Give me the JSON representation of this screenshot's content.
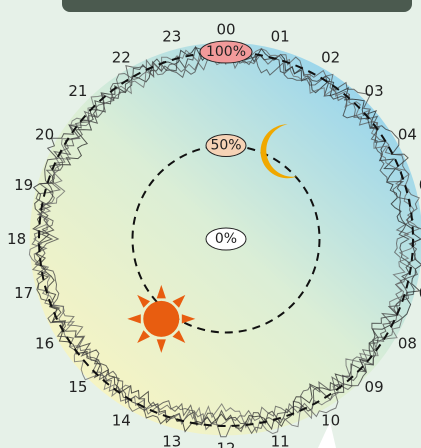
{
  "chart_data": {
    "type": "radial-line",
    "title": "",
    "hours": [
      "00",
      "01",
      "02",
      "03",
      "04",
      "05",
      "06",
      "07",
      "08",
      "09",
      "10",
      "11",
      "12",
      "13",
      "14",
      "15",
      "16",
      "17",
      "18",
      "19",
      "20",
      "21",
      "22",
      "23"
    ],
    "radial_scale": {
      "min": 0,
      "max": 100,
      "unit": "%",
      "rings": [
        {
          "value": 50,
          "label": "50%"
        },
        {
          "value": 100,
          "label": "100%"
        }
      ],
      "center_label": "0%"
    },
    "series_description": "many overlapping noisy traces fluctuating between roughly 86% and 108% around the full clock",
    "series": [
      {
        "values": [
          98,
          101,
          95,
          103,
          97,
          92,
          100,
          105,
          96,
          99,
          93,
          102,
          97,
          104,
          94,
          99,
          101,
          95,
          98,
          103,
          92,
          100,
          97,
          102
        ]
      },
      {
        "values": [
          95,
          99,
          102,
          96,
          100,
          104,
          93,
          98,
          101,
          97,
          105,
          94,
          100,
          96,
          102,
          98,
          93,
          104,
          99,
          95,
          101,
          97,
          103,
          96
        ]
      },
      {
        "values": [
          102,
          96,
          99,
          93,
          105,
          98,
          96,
          101,
          94,
          103,
          97,
          99,
          95,
          100,
          104,
          93,
          98,
          102,
          96,
          99,
          105,
          94,
          100,
          98
        ]
      },
      {
        "values": [
          97,
          104,
          93,
          100,
          96,
          101,
          99,
          94,
          103,
          95,
          100,
          106,
          92,
          98,
          97,
          104,
          96,
          99,
          103,
          94,
          98,
          102,
          95,
          101
        ]
      },
      {
        "values": [
          100,
          94,
          98,
          105,
          92,
          97,
          103,
          99,
          96,
          101,
          94,
          97,
          104,
          93,
          100,
          96,
          102,
          97,
          94,
          101,
          99,
          96,
          104,
          93
        ]
      }
    ],
    "background_gradient": [
      "#fbf5c0",
      "#8fd1f0"
    ],
    "symbols": [
      {
        "name": "sun",
        "hour": 14.6,
        "radius_pct": 55,
        "color": "#e85d10"
      },
      {
        "name": "moon",
        "hour": 2.1,
        "radius_pct": 55,
        "color": "#f0a800"
      }
    ]
  }
}
